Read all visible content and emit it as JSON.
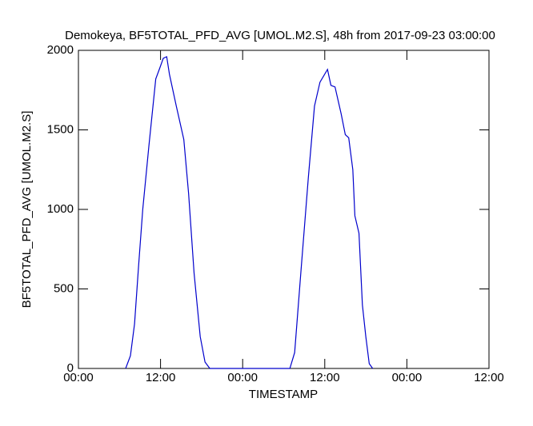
{
  "chart_data": {
    "type": "line",
    "title": "Demokeya, BF5TOTAL_PFD_AVG [UMOL.M2.S], 48h from  2017-09-23 03:00:00",
    "xlabel": "TIMESTAMP",
    "ylabel": "BF5TOTAL_PFD_AVG [UMOL.M2.S]",
    "xlim": [
      0,
      60
    ],
    "ylim": [
      0,
      2000
    ],
    "xticks": [
      {
        "value": 0,
        "label": "00:00"
      },
      {
        "value": 12,
        "label": "12:00"
      },
      {
        "value": 24,
        "label": "00:00"
      },
      {
        "value": 36,
        "label": "12:00"
      },
      {
        "value": 48,
        "label": "00:00"
      },
      {
        "value": 60,
        "label": "12:00"
      }
    ],
    "yticks": [
      0,
      500,
      1000,
      1500,
      2000
    ],
    "series": [
      {
        "name": "BF5TOTAL_PFD_AVG",
        "color": "#0000cc",
        "x": [
          6.9,
          7.6,
          8.2,
          8.8,
          9.4,
          10.3,
          11.3,
          11.9,
          12.4,
          12.9,
          13.3,
          14.3,
          15.4,
          16.1,
          16.9,
          17.8,
          18.5,
          19.2,
          30.9,
          31.6,
          32.5,
          33.6,
          34.5,
          35.3,
          36.4,
          36.9,
          37.5,
          38.4,
          39.0,
          39.5,
          40.1,
          40.4,
          41.0,
          41.5,
          42.0,
          42.5,
          43.0
        ],
        "values": [
          0,
          80,
          280,
          650,
          1000,
          1400,
          1820,
          1890,
          1950,
          1960,
          1850,
          1650,
          1440,
          1100,
          600,
          200,
          40,
          0,
          0,
          100,
          600,
          1200,
          1650,
          1800,
          1880,
          1780,
          1770,
          1600,
          1470,
          1450,
          1250,
          960,
          850,
          400,
          200,
          30,
          0
        ]
      }
    ]
  }
}
